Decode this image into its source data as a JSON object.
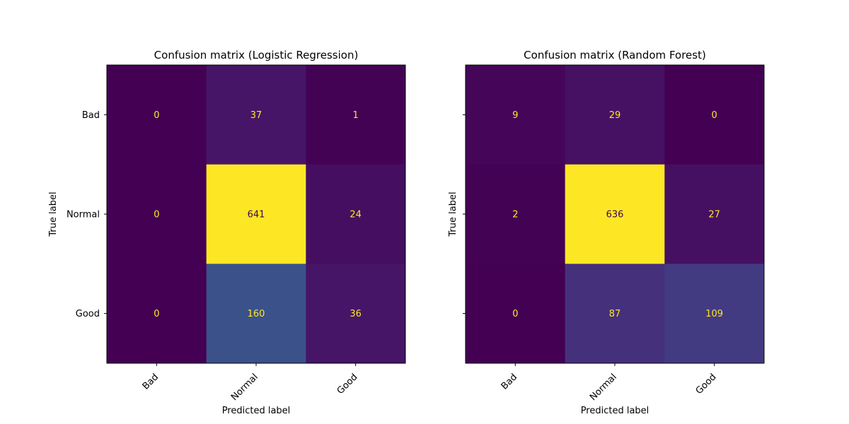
{
  "chart_data": [
    {
      "type": "heatmap",
      "title": "Confusion matrix (Logistic Regression)",
      "xlabel": "Predicted label",
      "ylabel": "True label",
      "x_categories": [
        "Bad",
        "Normal",
        "Good"
      ],
      "y_categories": [
        "Bad",
        "Normal",
        "Good"
      ],
      "values": [
        [
          0,
          37,
          1
        ],
        [
          0,
          641,
          24
        ],
        [
          0,
          160,
          36
        ]
      ],
      "colormap": "viridis",
      "show_y_tick_labels": true,
      "show_colorbar": false
    },
    {
      "type": "heatmap",
      "title": "Confusion matrix (Random Forest)",
      "xlabel": "Predicted label",
      "ylabel": "True label",
      "x_categories": [
        "Bad",
        "Normal",
        "Good"
      ],
      "y_categories": [
        "Bad",
        "Normal",
        "Good"
      ],
      "values": [
        [
          9,
          29,
          0
        ],
        [
          2,
          636,
          27
        ],
        [
          0,
          87,
          109
        ]
      ],
      "colormap": "viridis",
      "show_y_tick_labels": false,
      "show_colorbar": false
    }
  ],
  "colors": {
    "low_value_text": "#fde725",
    "high_value_text": "#440154",
    "axis_frame": "#000000"
  }
}
